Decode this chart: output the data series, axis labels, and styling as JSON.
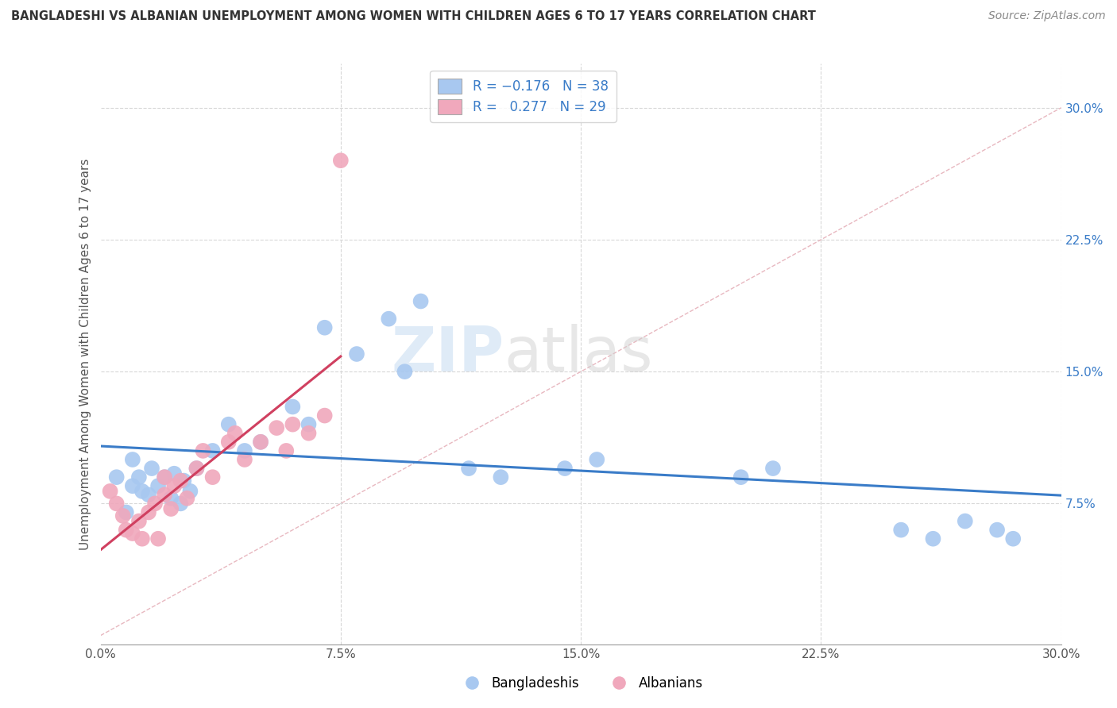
{
  "title": "BANGLADESHI VS ALBANIAN UNEMPLOYMENT AMONG WOMEN WITH CHILDREN AGES 6 TO 17 YEARS CORRELATION CHART",
  "source": "Source: ZipAtlas.com",
  "ylabel": "Unemployment Among Women with Children Ages 6 to 17 years",
  "xlim": [
    0.0,
    0.3
  ],
  "ylim": [
    -0.005,
    0.325
  ],
  "xtick_vals": [
    0.0,
    0.075,
    0.15,
    0.225,
    0.3
  ],
  "xtick_labels": [
    "0.0%",
    "7.5%",
    "15.0%",
    "22.5%",
    "30.0%"
  ],
  "ytick_vals_right": [
    0.075,
    0.15,
    0.225,
    0.3
  ],
  "ytick_labels_right": [
    "7.5%",
    "15.0%",
    "22.5%",
    "30.0%"
  ],
  "watermark_zip": "ZIP",
  "watermark_atlas": "atlas",
  "blue_color": "#a8c8f0",
  "pink_color": "#f0a8bc",
  "trend_blue": "#3a7cc8",
  "trend_pink": "#d04060",
  "diagonal_color": "#e8b8c0",
  "grid_color": "#d8d8d8",
  "bangladeshi_x": [
    0.005,
    0.008,
    0.01,
    0.01,
    0.012,
    0.013,
    0.015,
    0.016,
    0.018,
    0.02,
    0.022,
    0.023,
    0.025,
    0.026,
    0.028,
    0.03,
    0.035,
    0.04,
    0.045,
    0.05,
    0.06,
    0.065,
    0.07,
    0.08,
    0.09,
    0.095,
    0.1,
    0.115,
    0.125,
    0.145,
    0.155,
    0.2,
    0.21,
    0.25,
    0.26,
    0.27,
    0.28,
    0.285
  ],
  "bangladeshi_y": [
    0.09,
    0.07,
    0.085,
    0.1,
    0.09,
    0.082,
    0.08,
    0.095,
    0.085,
    0.09,
    0.078,
    0.092,
    0.075,
    0.088,
    0.082,
    0.095,
    0.105,
    0.12,
    0.105,
    0.11,
    0.13,
    0.12,
    0.175,
    0.16,
    0.18,
    0.15,
    0.19,
    0.095,
    0.09,
    0.095,
    0.1,
    0.09,
    0.095,
    0.06,
    0.055,
    0.065,
    0.06,
    0.055
  ],
  "albanian_x": [
    0.003,
    0.005,
    0.007,
    0.008,
    0.01,
    0.012,
    0.013,
    0.015,
    0.017,
    0.018,
    0.02,
    0.02,
    0.022,
    0.023,
    0.025,
    0.027,
    0.03,
    0.032,
    0.035,
    0.04,
    0.042,
    0.045,
    0.05,
    0.055,
    0.058,
    0.06,
    0.065,
    0.07,
    0.075
  ],
  "albanian_y": [
    0.082,
    0.075,
    0.068,
    0.06,
    0.058,
    0.065,
    0.055,
    0.07,
    0.075,
    0.055,
    0.08,
    0.09,
    0.072,
    0.085,
    0.088,
    0.078,
    0.095,
    0.105,
    0.09,
    0.11,
    0.115,
    0.1,
    0.11,
    0.118,
    0.105,
    0.12,
    0.115,
    0.125,
    0.27
  ],
  "legend1_color": "#a8c8f0",
  "legend2_color": "#f0a8bc",
  "legend_text_color": "#3a7cc8",
  "right_axis_color": "#3a7cc8"
}
